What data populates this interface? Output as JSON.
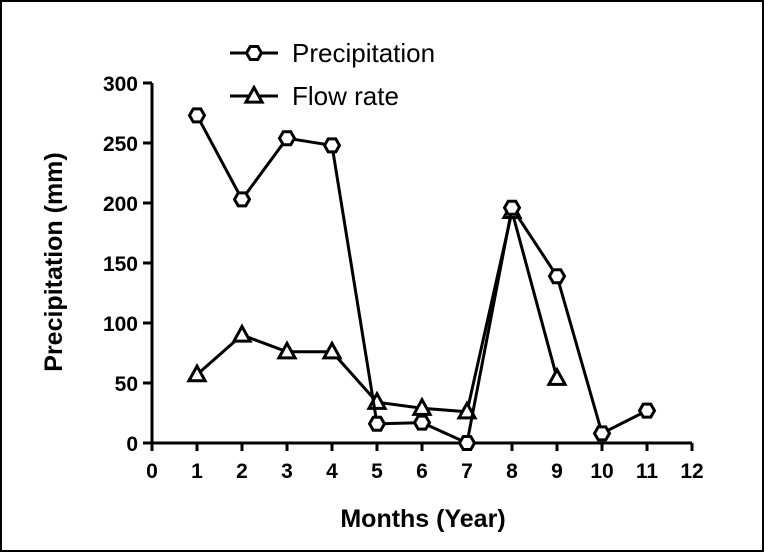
{
  "chart_data": {
    "type": "line",
    "title": "",
    "xlabel": "Months (Year)",
    "ylabel": "Precipitation (mm)",
    "xlim": [
      0,
      12
    ],
    "ylim": [
      0,
      300
    ],
    "xticks": [
      "0",
      "1",
      "2",
      "3",
      "4",
      "5",
      "6",
      "7",
      "8",
      "9",
      "10",
      "11",
      "12"
    ],
    "yticks": [
      "0",
      "50",
      "100",
      "150",
      "200",
      "250",
      "300"
    ],
    "grid": false,
    "legend_position": "top-left",
    "series": [
      {
        "name": "Precipitation",
        "marker": "hexagon",
        "color": "#000000",
        "x": [
          1,
          2,
          3,
          4,
          5,
          6,
          7,
          8,
          9,
          10,
          11
        ],
        "y": [
          273,
          203,
          254,
          248,
          16,
          17,
          0,
          196,
          139,
          8,
          27
        ]
      },
      {
        "name": "Flow rate",
        "marker": "triangle",
        "color": "#000000",
        "x": [
          1,
          2,
          3,
          4,
          5,
          6,
          7,
          8,
          9
        ],
        "y": [
          57,
          90,
          76,
          76,
          34,
          29,
          26,
          193,
          54
        ]
      }
    ]
  }
}
